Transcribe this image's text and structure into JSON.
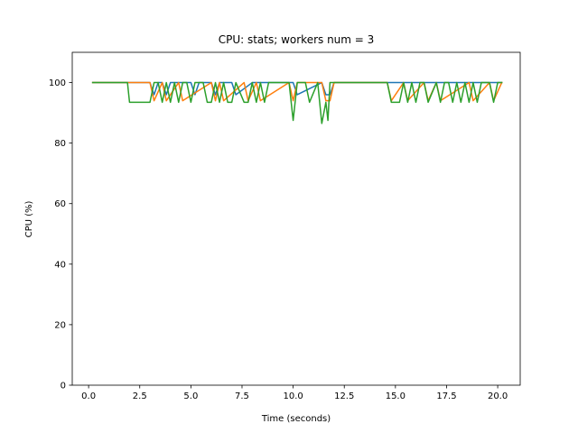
{
  "chart_data": {
    "type": "line",
    "title": "CPU: stats; workers num = 3",
    "xlabel": "Time (seconds)",
    "ylabel": "CPU (%)",
    "xlim": [
      -0.8,
      21.1
    ],
    "ylim": [
      0,
      110
    ],
    "xticks": [
      0.0,
      2.5,
      5.0,
      7.5,
      10.0,
      12.5,
      15.0,
      17.5,
      20.0
    ],
    "xtick_labels": [
      "0.0",
      "2.5",
      "5.0",
      "7.5",
      "10.0",
      "12.5",
      "15.0",
      "17.5",
      "20.0"
    ],
    "yticks": [
      0,
      20,
      40,
      60,
      80,
      100
    ],
    "ytick_labels": [
      "0",
      "20",
      "40",
      "60",
      "80",
      "100"
    ],
    "grid": false,
    "colors": [
      "#1f77b4",
      "#ff7f0e",
      "#2ca02c"
    ],
    "series": [
      {
        "x": [
          0.2,
          3.0,
          3.2,
          3.4,
          3.6,
          3.8,
          4.0,
          5.0,
          5.2,
          5.4,
          6.0,
          6.2,
          6.4,
          6.6,
          7.0,
          7.2,
          8.0,
          8.2,
          10.0,
          10.2,
          11.4,
          11.6,
          11.8,
          12.0,
          20.2
        ],
        "y": [
          100,
          100,
          96,
          100,
          100,
          96,
          100,
          100,
          96,
          100,
          100,
          96,
          100,
          100,
          100,
          96,
          100,
          100,
          100,
          96,
          100,
          96,
          96,
          100,
          100
        ]
      },
      {
        "x": [
          0.2,
          2.0,
          3.0,
          3.2,
          3.6,
          3.8,
          4.4,
          4.6,
          6.0,
          6.2,
          6.4,
          6.6,
          7.6,
          7.8,
          8.2,
          8.4,
          9.8,
          10.0,
          10.2,
          11.4,
          11.6,
          11.8,
          12.0,
          14.6,
          14.8,
          15.4,
          15.6,
          16.4,
          16.6,
          17.0,
          17.2,
          18.6,
          18.8,
          19.6,
          19.8,
          20.2
        ],
        "y": [
          100,
          100,
          100,
          94,
          100,
          94,
          100,
          94,
          100,
          94,
          100,
          94,
          100,
          94,
          100,
          94,
          100,
          94,
          100,
          100,
          94,
          94,
          100,
          100,
          94,
          100,
          94,
          100,
          94,
          100,
          94,
          100,
          94,
          100,
          94,
          100
        ]
      },
      {
        "x": [
          0.2,
          1.9,
          2.0,
          3.0,
          3.2,
          3.4,
          3.6,
          3.8,
          4.0,
          4.2,
          4.4,
          4.6,
          4.8,
          5.0,
          5.2,
          5.4,
          5.6,
          5.8,
          6.0,
          6.2,
          6.4,
          6.6,
          6.8,
          7.0,
          7.2,
          7.6,
          7.8,
          8.0,
          8.2,
          8.4,
          8.6,
          8.8,
          9.0,
          9.8,
          10.0,
          10.2,
          10.6,
          10.8,
          11.2,
          11.4,
          11.6,
          11.7,
          11.8,
          12.0,
          14.6,
          14.8,
          15.2,
          15.4,
          15.6,
          15.8,
          16.0,
          16.2,
          16.4,
          16.6,
          17.0,
          17.2,
          17.4,
          17.6,
          17.8,
          18.0,
          18.2,
          18.4,
          18.6,
          18.8,
          19.0,
          19.2,
          19.6,
          19.8,
          20.0,
          20.2
        ],
        "y": [
          100,
          100,
          93.5,
          93.5,
          100,
          100,
          93.5,
          100,
          93.5,
          100,
          93.5,
          100,
          100,
          93.5,
          100,
          100,
          100,
          93.5,
          93.5,
          100,
          93.5,
          100,
          93.5,
          93.5,
          100,
          93.5,
          93.5,
          100,
          93.5,
          100,
          93.5,
          100,
          100,
          100,
          87.5,
          100,
          100,
          93.5,
          100,
          86.5,
          93.5,
          87.5,
          100,
          100,
          100,
          93.5,
          93.5,
          100,
          93.5,
          100,
          93.5,
          100,
          100,
          93.5,
          100,
          93.5,
          100,
          100,
          93.5,
          100,
          93.5,
          100,
          93.5,
          100,
          93.5,
          100,
          100,
          93.5,
          100,
          100
        ]
      }
    ]
  }
}
